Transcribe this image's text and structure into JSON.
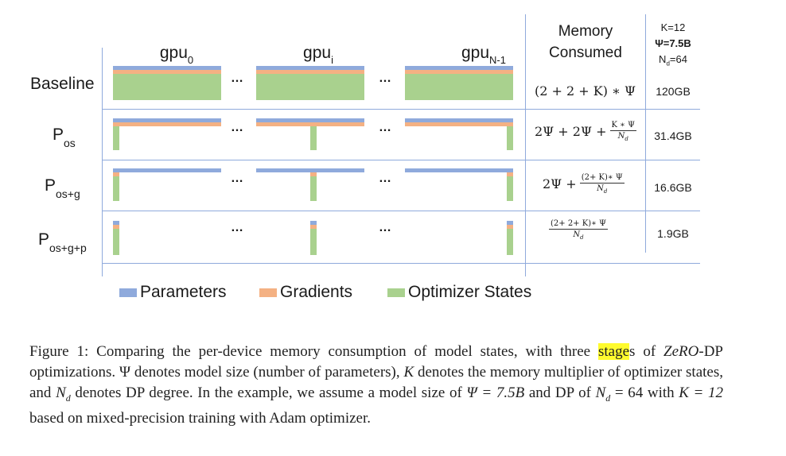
{
  "figure": {
    "gpu_labels": [
      {
        "base": "gpu",
        "sub": "0"
      },
      {
        "base": "gpu",
        "sub": "i"
      },
      {
        "base": "gpu",
        "sub": "N-1"
      }
    ],
    "ellipsis": "…",
    "rows": [
      {
        "base": "Baseline",
        "sub": "",
        "formula": "(2 + 2 + K) ∗ Ψ",
        "memory": "120GB"
      },
      {
        "base": "P",
        "sub": "os",
        "formula_lead": "2Ψ + 2Ψ + ",
        "frac_num": "K ∗ Ψ",
        "frac_den": "N",
        "frac_den_sub": "d",
        "memory": "31.4GB"
      },
      {
        "base": "P",
        "sub": "os+g",
        "formula_lead": "2Ψ + ",
        "frac_num": "(2+ K)∗ Ψ",
        "frac_den": "N",
        "frac_den_sub": "d",
        "memory": "16.6GB"
      },
      {
        "base": "P",
        "sub": "os+g+p",
        "formula_lead": "",
        "frac_num": "(2+ 2+ K)∗ Ψ",
        "frac_den": "N",
        "frac_den_sub": "d",
        "memory": "1.9GB"
      }
    ],
    "header": {
      "memory_line1": "Memory",
      "memory_line2": "Consumed",
      "k": "K=12",
      "psi": "Ψ=7.5B",
      "nd_base": "N",
      "nd_sub": "d",
      "nd_val": "=64"
    },
    "legend": [
      {
        "label": "Parameters",
        "color": "#8faadc"
      },
      {
        "label": "Gradients",
        "color": "#f4b183"
      },
      {
        "label": "Optimizer States",
        "color": "#a9d18e"
      }
    ],
    "colors": {
      "parameters": "#8faadc",
      "gradients": "#f4b183",
      "optimizer": "#a9d18e",
      "grid": "#8faadc",
      "highlight": "#fffb2e"
    }
  },
  "caption": {
    "part1": "Figure 1: Comparing the per-device memory consumption of model states, with three ",
    "highlighted": "stage",
    "part2": "s of ",
    "zero": "ZeRO",
    "part3": "-DP optimizations. Ψ denotes model size (number of parameters), ",
    "k": "K",
    "part4": " denotes the memory multiplier of optimizer states, and ",
    "nd": "N",
    "nd_sub": "d",
    "part5": " denotes DP degree. In the example, we assume a model size of ",
    "psi_eq": "Ψ = 7.5B",
    "part6": " and DP of ",
    "nd2": "N",
    "nd2_sub": "d",
    "part7": " = 64 with ",
    "k_eq": "K = 12",
    "part8": " based on mixed-precision training with Adam optimizer."
  }
}
